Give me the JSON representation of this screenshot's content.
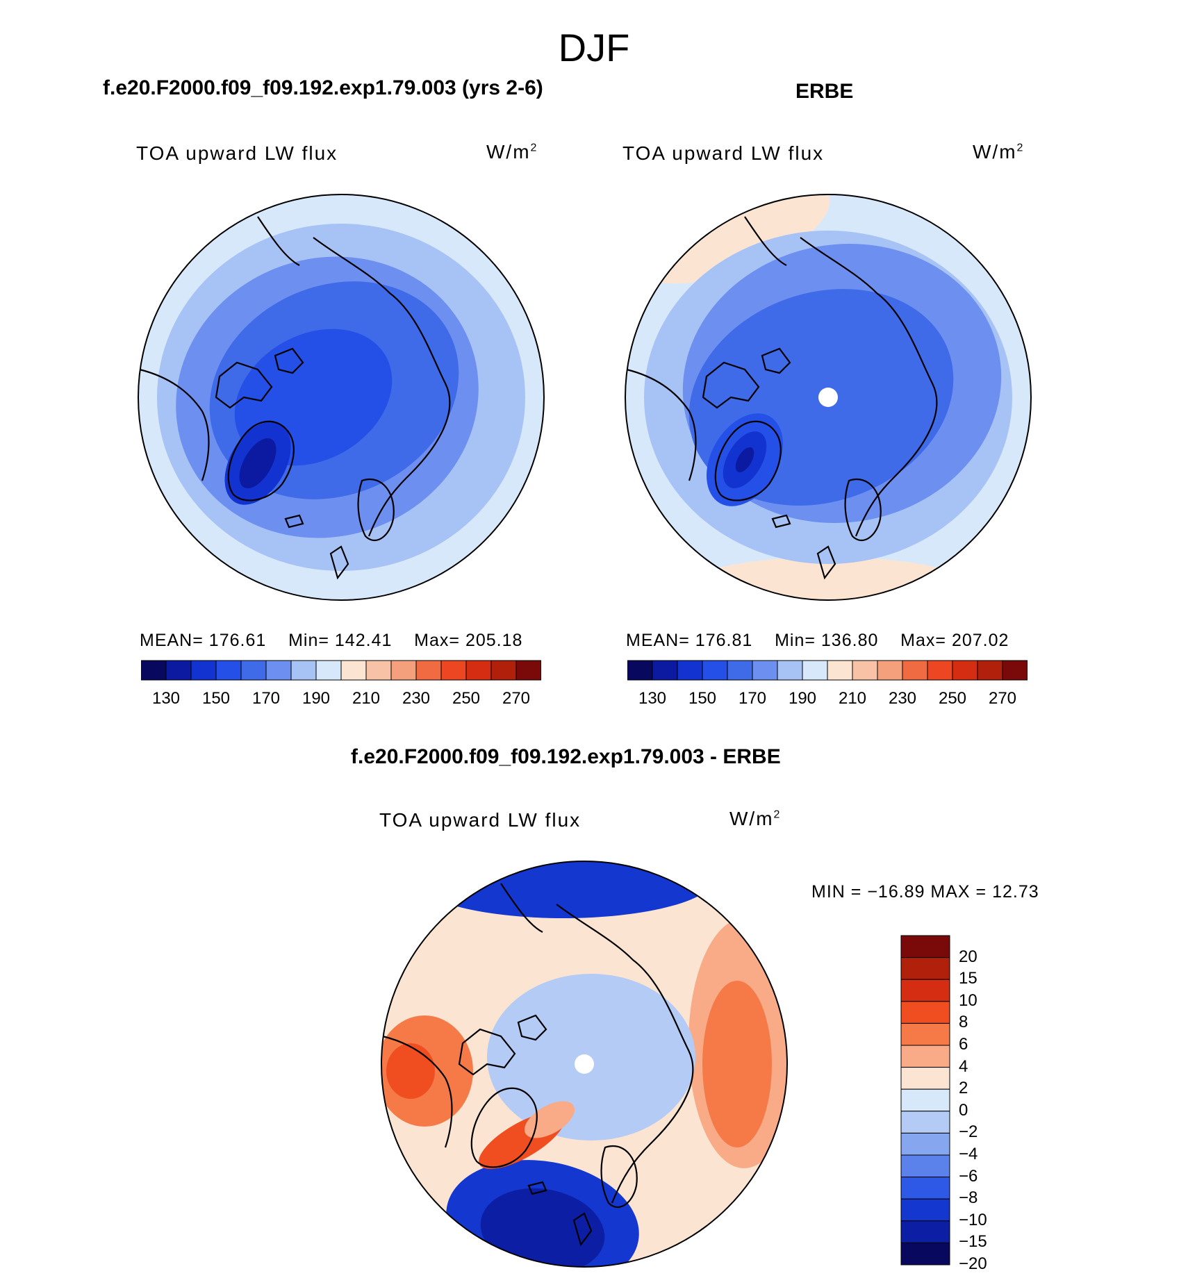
{
  "header": {
    "season": "DJF"
  },
  "panels": [
    {
      "title": "f.e20.F2000.f09_f09.192.exp1.79.003 (yrs 2-6)",
      "variable": "TOA upward LW flux",
      "units": "W/m",
      "units_sup": "2",
      "mean_label": "MEAN=",
      "mean": "176.61",
      "min_label": "Min=",
      "min": "142.41",
      "max_label": "Max=",
      "max": "205.18"
    },
    {
      "title": "ERBE",
      "variable": "TOA upward LW flux",
      "units": "W/m",
      "units_sup": "2",
      "mean_label": "MEAN=",
      "mean": "176.81",
      "min_label": "Min=",
      "min": "136.80",
      "max_label": "Max=",
      "max": "207.02"
    },
    {
      "title": "f.e20.F2000.f09_f09.192.exp1.79.003 - ERBE",
      "variable": "TOA upward LW flux",
      "units": "W/m",
      "units_sup": "2",
      "minmax": "MIN = −16.89 MAX =   12.73"
    }
  ],
  "chart_data": [
    {
      "type": "heatmap",
      "projection": "north-polar-stereographic",
      "title": "f.e20.F2000.f09_f09.192.exp1.79.003 (yrs 2-6)",
      "variable": "TOA upward LW flux",
      "units": "W/m2",
      "mean": 176.61,
      "min": 142.41,
      "max": 205.18,
      "colorbar": {
        "orientation": "horizontal",
        "levels": [
          130,
          140,
          150,
          160,
          170,
          180,
          190,
          200,
          210,
          220,
          230,
          240,
          250,
          260,
          270
        ],
        "tick_labels": [
          "130",
          "150",
          "170",
          "190",
          "210",
          "230",
          "250",
          "270"
        ]
      }
    },
    {
      "type": "heatmap",
      "projection": "north-polar-stereographic",
      "title": "ERBE",
      "variable": "TOA upward LW flux",
      "units": "W/m2",
      "mean": 176.81,
      "min": 136.8,
      "max": 207.02,
      "colorbar": {
        "orientation": "horizontal",
        "levels": [
          130,
          140,
          150,
          160,
          170,
          180,
          190,
          200,
          210,
          220,
          230,
          240,
          250,
          260,
          270
        ],
        "tick_labels": [
          "130",
          "150",
          "170",
          "190",
          "210",
          "230",
          "250",
          "270"
        ]
      }
    },
    {
      "type": "heatmap",
      "projection": "north-polar-stereographic",
      "title": "f.e20.F2000.f09_f09.192.exp1.79.003 - ERBE",
      "variable": "TOA upward LW flux",
      "units": "W/m2",
      "min": -16.89,
      "max": 12.73,
      "colorbar": {
        "orientation": "vertical",
        "levels": [
          20,
          15,
          10,
          8,
          6,
          4,
          2,
          0,
          -2,
          -4,
          -6,
          -8,
          -10,
          -15,
          -20
        ],
        "tick_labels": [
          "20",
          "15",
          "10",
          "8",
          "6",
          "4",
          "2",
          "0",
          "−2",
          "−4",
          "−6",
          "−8",
          "−10",
          "−15",
          "−20"
        ]
      }
    }
  ],
  "colors": {
    "absolute_scale": [
      "#08085f",
      "#0b1aa0",
      "#1233d0",
      "#2450e8",
      "#3f6ae8",
      "#6c8ff0",
      "#a7c2f5",
      "#d8e8fb",
      "#fbe5d2",
      "#f8c2a7",
      "#f5a07c",
      "#f06a42",
      "#ec4622",
      "#d42d12",
      "#b0200a",
      "#7a0a0a"
    ],
    "difference_scale": [
      "#7a0a0a",
      "#b0200a",
      "#d42d12",
      "#f04e20",
      "#f57a48",
      "#f8ab86",
      "#fbe5d2",
      "#d8e8fb",
      "#b3cbf5",
      "#86a7f0",
      "#5a82ea",
      "#2e59e6",
      "#1337cf",
      "#0c1fa4",
      "#08085f"
    ]
  }
}
